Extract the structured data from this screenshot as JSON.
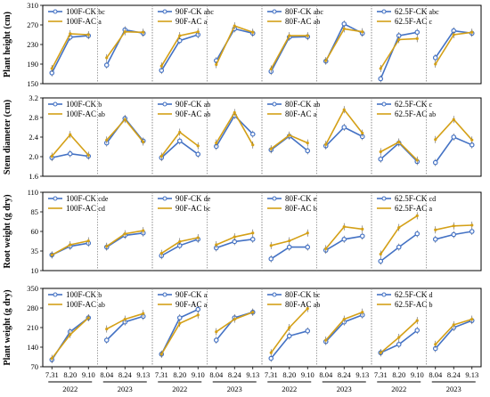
{
  "colors": {
    "ck": "#4472C4",
    "ac": "#D4A017",
    "divider": "#888888"
  },
  "chart_data": {
    "type": "line",
    "x_ticks": [
      "7.31",
      "8.20",
      "9.10",
      "8.04",
      "8.24",
      "9.13"
    ],
    "years": [
      {
        "label": "2022",
        "tick_range": [
          0,
          2
        ]
      },
      {
        "label": "2023",
        "tick_range": [
          3,
          5
        ]
      }
    ],
    "treatments": [
      "100F",
      "90F",
      "80F",
      "62.5F"
    ],
    "rows": [
      {
        "ylabel": "Plant height (cm)",
        "ylim": [
          150,
          310
        ],
        "yticks": [
          "150",
          "190",
          "230",
          "270",
          "310"
        ],
        "panels": [
          {
            "legend": [
              {
                "name": "100F-CK",
                "sig": "bc"
              },
              {
                "name": "100F-AC",
                "sig": "a"
              }
            ],
            "ck": [
              172,
              245,
              248,
              188,
              260,
              253
            ],
            "ac": [
              181,
              252,
              250,
              203,
              256,
              255
            ]
          },
          {
            "legend": [
              {
                "name": "90F-CK",
                "sig": "abc"
              },
              {
                "name": "90F-AC",
                "sig": "a"
              }
            ],
            "ck": [
              177,
              238,
              250,
              197,
              262,
              253
            ],
            "ac": [
              186,
              248,
              256,
              189,
              268,
              255
            ]
          },
          {
            "legend": [
              {
                "name": "80F-CK",
                "sig": "abc"
              },
              {
                "name": "80F-AC",
                "sig": "ab"
              }
            ],
            "ck": [
              175,
              245,
              246,
              196,
              272,
              253
            ],
            "ac": [
              180,
              248,
              248,
              197,
              262,
              256
            ]
          },
          {
            "legend": [
              {
                "name": "62.5F-CK",
                "sig": "abc"
              },
              {
                "name": "62.5F-AC",
                "sig": "c"
              }
            ],
            "ck": [
              160,
              248,
              255,
              203,
              258,
              253
            ],
            "ac": [
              181,
              240,
              242,
              190,
              250,
              255
            ]
          }
        ]
      },
      {
        "ylabel": "Stem diameter (cm)",
        "ylim": [
          1.6,
          3.2
        ],
        "yticks": [
          "1.6",
          "2.0",
          "2.4",
          "2.8",
          "3.2"
        ],
        "panels": [
          {
            "legend": [
              {
                "name": "100F-CK",
                "sig": "b"
              },
              {
                "name": "100F-AC",
                "sig": "ab"
              }
            ],
            "ck": [
              1.98,
              2.06,
              2.01,
              2.28,
              2.78,
              2.32
            ],
            "ac": [
              2.01,
              2.45,
              2.03,
              2.34,
              2.76,
              2.3
            ]
          },
          {
            "legend": [
              {
                "name": "90F-CK",
                "sig": "ab"
              },
              {
                "name": "90F-AC",
                "sig": "ab"
              }
            ],
            "ck": [
              1.98,
              2.32,
              2.05,
              2.21,
              2.84,
              2.46
            ],
            "ac": [
              2.01,
              2.5,
              2.22,
              2.28,
              2.9,
              2.24
            ]
          },
          {
            "legend": [
              {
                "name": "80F-CK",
                "sig": "ab"
              },
              {
                "name": "80F-AC",
                "sig": "a"
              }
            ],
            "ck": [
              2.14,
              2.42,
              2.12,
              2.22,
              2.6,
              2.41
            ],
            "ac": [
              2.16,
              2.44,
              2.28,
              2.25,
              2.96,
              2.48
            ]
          },
          {
            "legend": [
              {
                "name": "62.5F-CK",
                "sig": "c"
              },
              {
                "name": "62.5F-AC",
                "sig": "ab"
              }
            ],
            "ck": [
              1.95,
              2.28,
              1.9,
              1.88,
              2.4,
              2.24
            ],
            "ac": [
              2.1,
              2.3,
              1.93,
              2.35,
              2.76,
              2.34
            ]
          }
        ]
      },
      {
        "ylabel": "Root weight (g dry)",
        "ylim": [
          10,
          110
        ],
        "yticks": [
          "10",
          "35",
          "60",
          "85",
          "110"
        ],
        "panels": [
          {
            "legend": [
              {
                "name": "100F-CK",
                "sig": "cde"
              },
              {
                "name": "100F-AC",
                "sig": "cd"
              }
            ],
            "ck": [
              30,
              41,
              45,
              40,
              55,
              58
            ],
            "ac": [
              30,
              43,
              48,
              41,
              57,
              61
            ]
          },
          {
            "legend": [
              {
                "name": "90F-CK",
                "sig": "de"
              },
              {
                "name": "90F-AC",
                "sig": "bc"
              }
            ],
            "ck": [
              29,
              42,
              50,
              39,
              47,
              50
            ],
            "ac": [
              32,
              47,
              52,
              43,
              53,
              58
            ]
          },
          {
            "legend": [
              {
                "name": "80F-CK",
                "sig": "e"
              },
              {
                "name": "80F-AC",
                "sig": "b"
              }
            ],
            "ck": [
              25,
              40,
              40,
              36,
              50,
              54
            ],
            "ac": [
              42,
              48,
              58,
              38,
              66,
              63
            ]
          },
          {
            "legend": [
              {
                "name": "62.5F-CK",
                "sig": "cd"
              },
              {
                "name": "62.5F-AC",
                "sig": "a"
              }
            ],
            "ck": [
              22,
              40,
              57,
              50,
              56,
              60
            ],
            "ac": [
              31,
              65,
              80,
              62,
              67,
              68
            ]
          }
        ]
      },
      {
        "ylabel": "Plant weight (g dry)",
        "ylim": [
          70,
          350
        ],
        "yticks": [
          "70",
          "140",
          "210",
          "280",
          "350"
        ],
        "panels": [
          {
            "legend": [
              {
                "name": "100F-CK",
                "sig": "b"
              },
              {
                "name": "100F-AC",
                "sig": "ab"
              }
            ],
            "ck": [
              95,
              195,
              245,
              165,
              230,
              250
            ],
            "ac": [
              100,
              185,
              245,
              205,
              240,
              260
            ]
          },
          {
            "legend": [
              {
                "name": "90F-CK",
                "sig": "a"
              },
              {
                "name": "90F-AC",
                "sig": "a"
              }
            ],
            "ck": [
              115,
              245,
              275,
              165,
              245,
              265
            ],
            "ac": [
              115,
              225,
              255,
              195,
              240,
              265
            ]
          },
          {
            "legend": [
              {
                "name": "80F-CK",
                "sig": "bc"
              },
              {
                "name": "80F-AC",
                "sig": "ab"
              }
            ],
            "ck": [
              100,
              180,
              198,
              160,
              230,
              255
            ],
            "ac": [
              120,
              210,
              278,
              165,
              240,
              265
            ]
          },
          {
            "legend": [
              {
                "name": "62.5F-CK",
                "sig": "d"
              },
              {
                "name": "62.5F-AC",
                "sig": "b"
              }
            ],
            "ck": [
              120,
              150,
              200,
              135,
              210,
              235
            ],
            "ac": [
              120,
              175,
              235,
              150,
              220,
              240
            ]
          }
        ]
      }
    ]
  }
}
